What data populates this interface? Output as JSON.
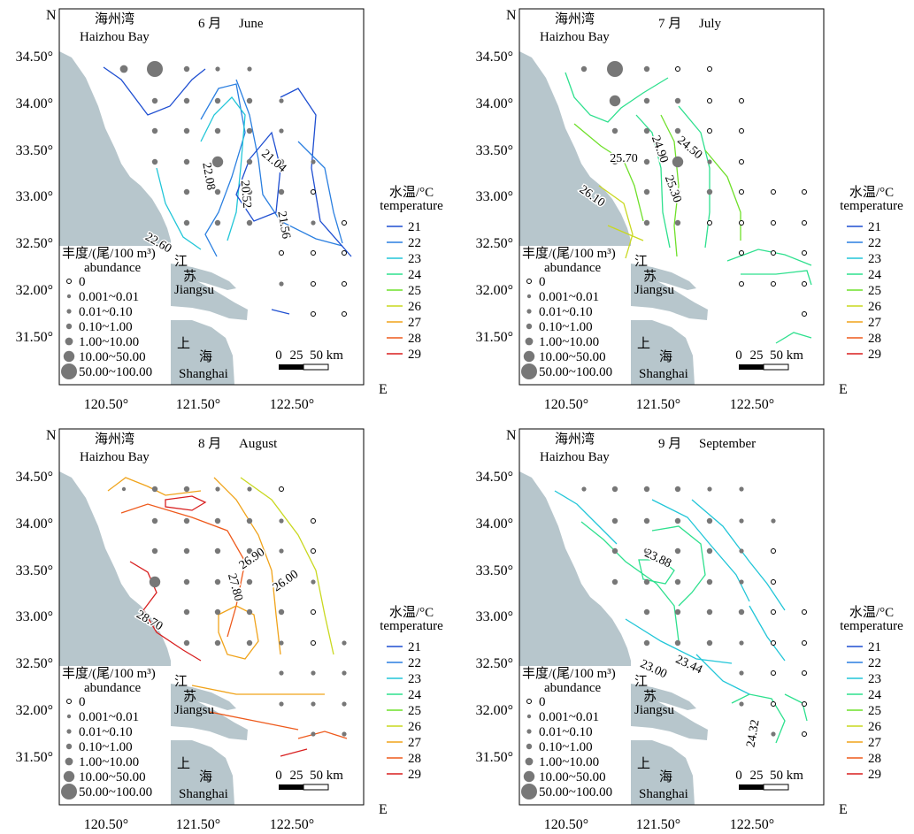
{
  "compass": {
    "north": "N",
    "east": "E"
  },
  "bay": {
    "zh": "海州湾",
    "en": "Haizhou Bay"
  },
  "province": {
    "zh1": "江",
    "zh2": "苏",
    "en": "Jiangsu"
  },
  "city": {
    "zh1": "上",
    "zh2": "海",
    "en": "Shanghai"
  },
  "lat_labels": [
    "34.50°",
    "34.00°",
    "33.50°",
    "33.00°",
    "32.50°",
    "32.00°",
    "31.50°"
  ],
  "lon_labels": [
    "120.50°",
    "121.50°",
    "122.50°"
  ],
  "abundance_legend": {
    "title": "丰度/(尾/100 m³)",
    "subtitle": "abundance",
    "classes": [
      "0",
      "0.001~0.01",
      "0.01~0.10",
      "0.10~1.00",
      "1.00~10.00",
      "10.00~50.00",
      "50.00~100.00"
    ]
  },
  "temp_legend": {
    "title": "水温/°C",
    "subtitle": "temperature",
    "items": [
      {
        "label": "21",
        "color": "#1f4fd1"
      },
      {
        "label": "22",
        "color": "#2a7fe0"
      },
      {
        "label": "23",
        "color": "#22c6d8"
      },
      {
        "label": "24",
        "color": "#2ee08e"
      },
      {
        "label": "25",
        "color": "#6fe02a"
      },
      {
        "label": "26",
        "color": "#c9d81f"
      },
      {
        "label": "27",
        "color": "#f0a31a"
      },
      {
        "label": "28",
        "color": "#ee5a1c"
      },
      {
        "label": "29",
        "color": "#d81f1f"
      }
    ]
  },
  "scale": {
    "ticks": [
      "0",
      "25",
      "50 km"
    ]
  },
  "panels": [
    {
      "month_zh": "6 月",
      "month_en": "June",
      "isotherm_labels": [
        "22.08",
        "20.52",
        "21.04",
        "21.56",
        "22.60"
      ]
    },
    {
      "month_zh": "7 月",
      "month_en": "July",
      "isotherm_labels": [
        "25.70",
        "24.90",
        "24.50",
        "25.30",
        "26.10"
      ]
    },
    {
      "month_zh": "8 月",
      "month_en": "August",
      "isotherm_labels": [
        "27.80",
        "26.90",
        "26.00",
        "28.70"
      ]
    },
    {
      "month_zh": "9 月",
      "month_en": "September",
      "isotherm_labels": [
        "23.88",
        "23.44",
        "23.00",
        "24.32"
      ]
    }
  ]
}
